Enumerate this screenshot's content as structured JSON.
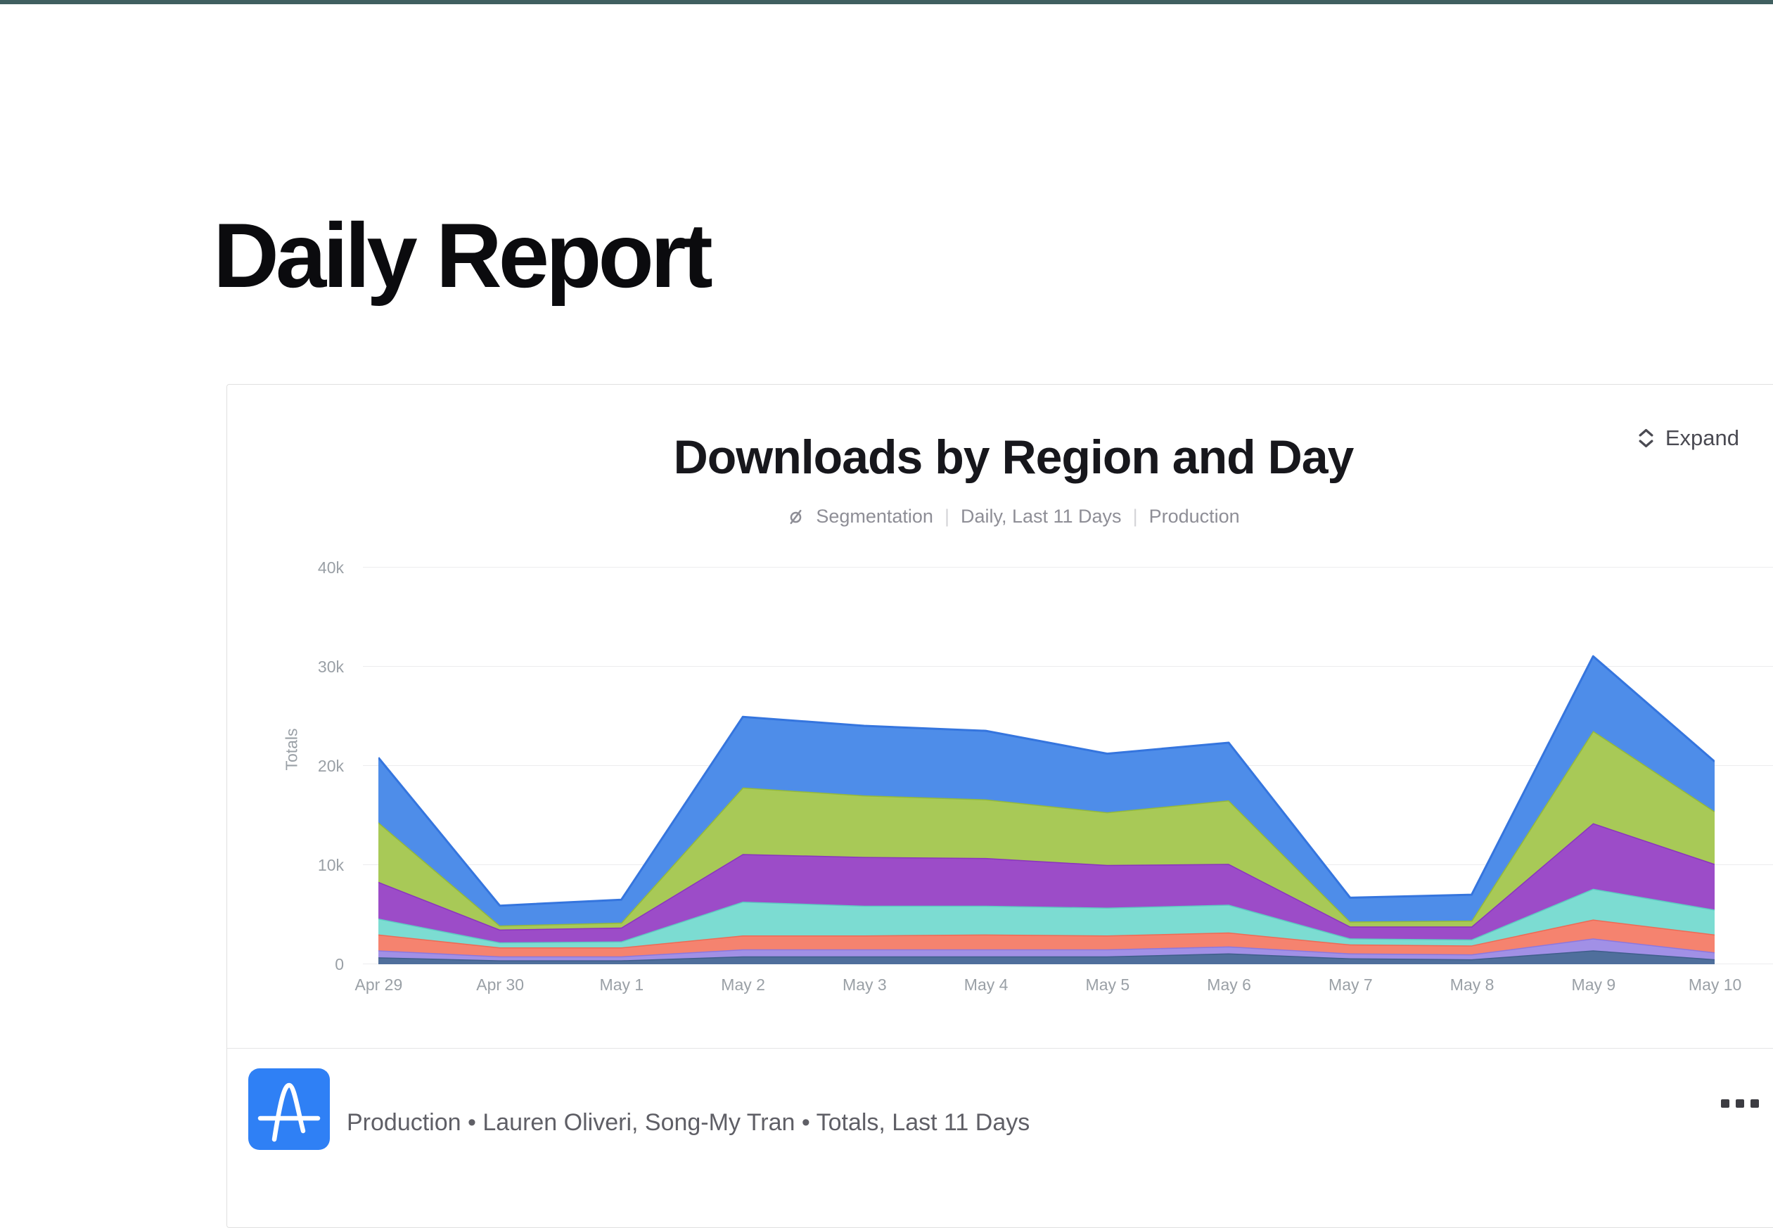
{
  "page": {
    "title": "Daily Report"
  },
  "topbar": {
    "color": "#405f60"
  },
  "card": {
    "title": "Downloads by Region and Day",
    "expand": {
      "label": "Expand"
    },
    "meta": {
      "chart_type": "Segmentation",
      "separator": "|",
      "interval": "Daily, Last 11 Days",
      "environment": "Production"
    },
    "footer": {
      "summary": "Production • Lauren Oliveri, Song-My Tran • Totals, Last 11 Days"
    }
  },
  "icons": {
    "expand": "chevrons-up-down-icon",
    "meta": "segmentation-chart-icon",
    "more": "ellipsis-icon",
    "logo": "amplitude-a-logo"
  },
  "colors": {
    "accent_blue": "#2f80f5",
    "topbar": "#405f60",
    "gridline": "#ececee",
    "axis_text": "#9aa0a6"
  },
  "chart_data": {
    "type": "area",
    "stacked": true,
    "title": "Downloads by Region and Day",
    "ylabel": "Totals",
    "xlabel": "",
    "grid": true,
    "legend_position": "none",
    "ylim": [
      0,
      40000
    ],
    "yticks_top_to_bottom": [
      "40k",
      "30k",
      "20k",
      "10k",
      "0"
    ],
    "x": [
      "Apr 29",
      "Apr 30",
      "May 1",
      "May 2",
      "May 3",
      "May 4",
      "May 5",
      "May 6",
      "May 7",
      "May 8",
      "May 9",
      "May 10"
    ],
    "series_bottom_to_top": [
      {
        "name": "slate-blue",
        "fill": "#4f6f9c",
        "stroke": "#3f5e8c",
        "values": [
          700,
          400,
          400,
          800,
          800,
          800,
          800,
          1100,
          600,
          500,
          1400,
          500
        ]
      },
      {
        "name": "lavender",
        "fill": "#a190e6",
        "stroke": "#8c77de",
        "values": [
          700,
          400,
          400,
          700,
          700,
          700,
          700,
          700,
          500,
          500,
          1200,
          700
        ]
      },
      {
        "name": "salmon",
        "fill": "#f5836f",
        "stroke": "#ee6a55",
        "values": [
          1600,
          900,
          900,
          1400,
          1400,
          1500,
          1400,
          1400,
          900,
          900,
          1900,
          1800
        ]
      },
      {
        "name": "teal",
        "fill": "#7cdcd2",
        "stroke": "#5eccc2",
        "values": [
          1600,
          500,
          600,
          3400,
          3000,
          2900,
          2800,
          2800,
          600,
          600,
          3100,
          2500
        ]
      },
      {
        "name": "purple",
        "fill": "#9c4cc8",
        "stroke": "#8a35bd",
        "values": [
          3700,
          1300,
          1400,
          4800,
          4900,
          4800,
          4300,
          4100,
          1200,
          1300,
          6600,
          4600
        ]
      },
      {
        "name": "green",
        "fill": "#a8c957",
        "stroke": "#93b93b",
        "values": [
          6000,
          400,
          500,
          6700,
          6200,
          5900,
          5300,
          6400,
          500,
          600,
          9300,
          5300
        ]
      },
      {
        "name": "blue",
        "fill": "#4e8de9",
        "stroke": "#3575de",
        "values": [
          6500,
          2000,
          2300,
          7100,
          7000,
          6900,
          5900,
          5800,
          2400,
          2600,
          7500,
          5000
        ]
      }
    ]
  }
}
